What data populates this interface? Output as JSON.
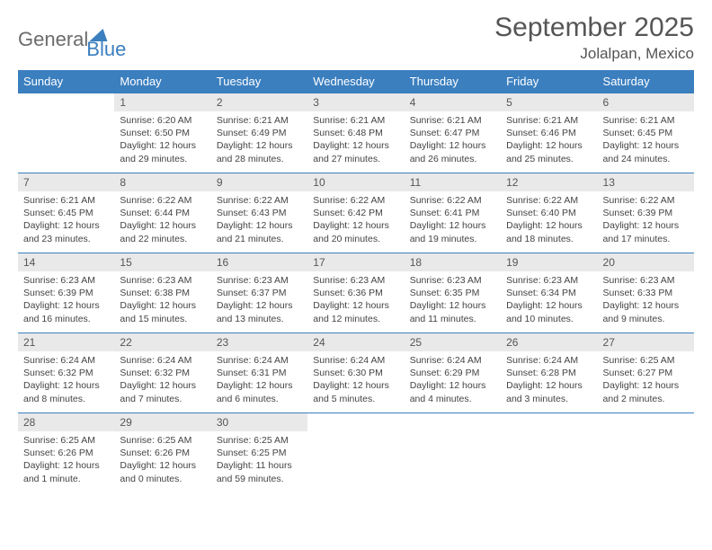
{
  "logo": {
    "part1": "General",
    "part2": "Blue"
  },
  "title": "September 2025",
  "location": "Jolalpan, Mexico",
  "colors": {
    "header_bg": "#3b7fbf",
    "daynum_bg": "#e9e9e9",
    "text": "#555"
  },
  "weekdays": [
    "Sunday",
    "Monday",
    "Tuesday",
    "Wednesday",
    "Thursday",
    "Friday",
    "Saturday"
  ],
  "weeks": [
    [
      null,
      {
        "n": "1",
        "sr": "Sunrise: 6:20 AM",
        "ss": "Sunset: 6:50 PM",
        "dl": "Daylight: 12 hours and 29 minutes."
      },
      {
        "n": "2",
        "sr": "Sunrise: 6:21 AM",
        "ss": "Sunset: 6:49 PM",
        "dl": "Daylight: 12 hours and 28 minutes."
      },
      {
        "n": "3",
        "sr": "Sunrise: 6:21 AM",
        "ss": "Sunset: 6:48 PM",
        "dl": "Daylight: 12 hours and 27 minutes."
      },
      {
        "n": "4",
        "sr": "Sunrise: 6:21 AM",
        "ss": "Sunset: 6:47 PM",
        "dl": "Daylight: 12 hours and 26 minutes."
      },
      {
        "n": "5",
        "sr": "Sunrise: 6:21 AM",
        "ss": "Sunset: 6:46 PM",
        "dl": "Daylight: 12 hours and 25 minutes."
      },
      {
        "n": "6",
        "sr": "Sunrise: 6:21 AM",
        "ss": "Sunset: 6:45 PM",
        "dl": "Daylight: 12 hours and 24 minutes."
      }
    ],
    [
      {
        "n": "7",
        "sr": "Sunrise: 6:21 AM",
        "ss": "Sunset: 6:45 PM",
        "dl": "Daylight: 12 hours and 23 minutes."
      },
      {
        "n": "8",
        "sr": "Sunrise: 6:22 AM",
        "ss": "Sunset: 6:44 PM",
        "dl": "Daylight: 12 hours and 22 minutes."
      },
      {
        "n": "9",
        "sr": "Sunrise: 6:22 AM",
        "ss": "Sunset: 6:43 PM",
        "dl": "Daylight: 12 hours and 21 minutes."
      },
      {
        "n": "10",
        "sr": "Sunrise: 6:22 AM",
        "ss": "Sunset: 6:42 PM",
        "dl": "Daylight: 12 hours and 20 minutes."
      },
      {
        "n": "11",
        "sr": "Sunrise: 6:22 AM",
        "ss": "Sunset: 6:41 PM",
        "dl": "Daylight: 12 hours and 19 minutes."
      },
      {
        "n": "12",
        "sr": "Sunrise: 6:22 AM",
        "ss": "Sunset: 6:40 PM",
        "dl": "Daylight: 12 hours and 18 minutes."
      },
      {
        "n": "13",
        "sr": "Sunrise: 6:22 AM",
        "ss": "Sunset: 6:39 PM",
        "dl": "Daylight: 12 hours and 17 minutes."
      }
    ],
    [
      {
        "n": "14",
        "sr": "Sunrise: 6:23 AM",
        "ss": "Sunset: 6:39 PM",
        "dl": "Daylight: 12 hours and 16 minutes."
      },
      {
        "n": "15",
        "sr": "Sunrise: 6:23 AM",
        "ss": "Sunset: 6:38 PM",
        "dl": "Daylight: 12 hours and 15 minutes."
      },
      {
        "n": "16",
        "sr": "Sunrise: 6:23 AM",
        "ss": "Sunset: 6:37 PM",
        "dl": "Daylight: 12 hours and 13 minutes."
      },
      {
        "n": "17",
        "sr": "Sunrise: 6:23 AM",
        "ss": "Sunset: 6:36 PM",
        "dl": "Daylight: 12 hours and 12 minutes."
      },
      {
        "n": "18",
        "sr": "Sunrise: 6:23 AM",
        "ss": "Sunset: 6:35 PM",
        "dl": "Daylight: 12 hours and 11 minutes."
      },
      {
        "n": "19",
        "sr": "Sunrise: 6:23 AM",
        "ss": "Sunset: 6:34 PM",
        "dl": "Daylight: 12 hours and 10 minutes."
      },
      {
        "n": "20",
        "sr": "Sunrise: 6:23 AM",
        "ss": "Sunset: 6:33 PM",
        "dl": "Daylight: 12 hours and 9 minutes."
      }
    ],
    [
      {
        "n": "21",
        "sr": "Sunrise: 6:24 AM",
        "ss": "Sunset: 6:32 PM",
        "dl": "Daylight: 12 hours and 8 minutes."
      },
      {
        "n": "22",
        "sr": "Sunrise: 6:24 AM",
        "ss": "Sunset: 6:32 PM",
        "dl": "Daylight: 12 hours and 7 minutes."
      },
      {
        "n": "23",
        "sr": "Sunrise: 6:24 AM",
        "ss": "Sunset: 6:31 PM",
        "dl": "Daylight: 12 hours and 6 minutes."
      },
      {
        "n": "24",
        "sr": "Sunrise: 6:24 AM",
        "ss": "Sunset: 6:30 PM",
        "dl": "Daylight: 12 hours and 5 minutes."
      },
      {
        "n": "25",
        "sr": "Sunrise: 6:24 AM",
        "ss": "Sunset: 6:29 PM",
        "dl": "Daylight: 12 hours and 4 minutes."
      },
      {
        "n": "26",
        "sr": "Sunrise: 6:24 AM",
        "ss": "Sunset: 6:28 PM",
        "dl": "Daylight: 12 hours and 3 minutes."
      },
      {
        "n": "27",
        "sr": "Sunrise: 6:25 AM",
        "ss": "Sunset: 6:27 PM",
        "dl": "Daylight: 12 hours and 2 minutes."
      }
    ],
    [
      {
        "n": "28",
        "sr": "Sunrise: 6:25 AM",
        "ss": "Sunset: 6:26 PM",
        "dl": "Daylight: 12 hours and 1 minute."
      },
      {
        "n": "29",
        "sr": "Sunrise: 6:25 AM",
        "ss": "Sunset: 6:26 PM",
        "dl": "Daylight: 12 hours and 0 minutes."
      },
      {
        "n": "30",
        "sr": "Sunrise: 6:25 AM",
        "ss": "Sunset: 6:25 PM",
        "dl": "Daylight: 11 hours and 59 minutes."
      },
      null,
      null,
      null,
      null
    ]
  ]
}
